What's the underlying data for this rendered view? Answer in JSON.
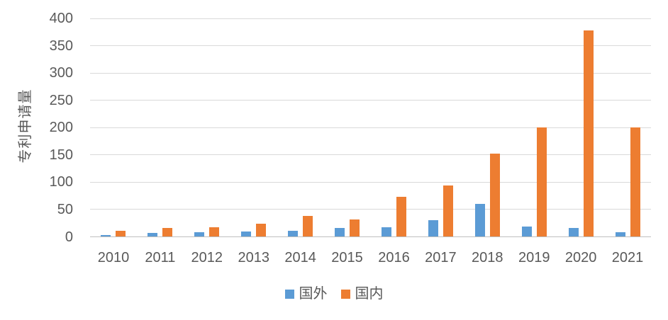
{
  "chart_data": {
    "type": "bar",
    "title": "",
    "y_axis_title": "专利申请量",
    "categories": [
      "2010",
      "2011",
      "2012",
      "2013",
      "2014",
      "2015",
      "2016",
      "2017",
      "2018",
      "2019",
      "2020",
      "2021"
    ],
    "series": [
      {
        "name": "国外",
        "color": "#5b9bd5",
        "values": [
          3,
          7,
          8,
          9,
          11,
          16,
          17,
          30,
          59,
          18,
          15,
          8
        ]
      },
      {
        "name": "国内",
        "color": "#ed7d31",
        "values": [
          10,
          15,
          17,
          23,
          38,
          31,
          72,
          94,
          152,
          200,
          377,
          200
        ]
      }
    ],
    "ylim": [
      0,
      400
    ],
    "y_ticks": [
      0,
      50,
      100,
      150,
      200,
      250,
      300,
      350,
      400
    ],
    "grid": true,
    "legend_position": "bottom",
    "colors": {
      "tick_text": "#595959",
      "gridline": "#d9d9d9",
      "axis_line": "#bfbfbf",
      "background": "#ffffff"
    }
  }
}
